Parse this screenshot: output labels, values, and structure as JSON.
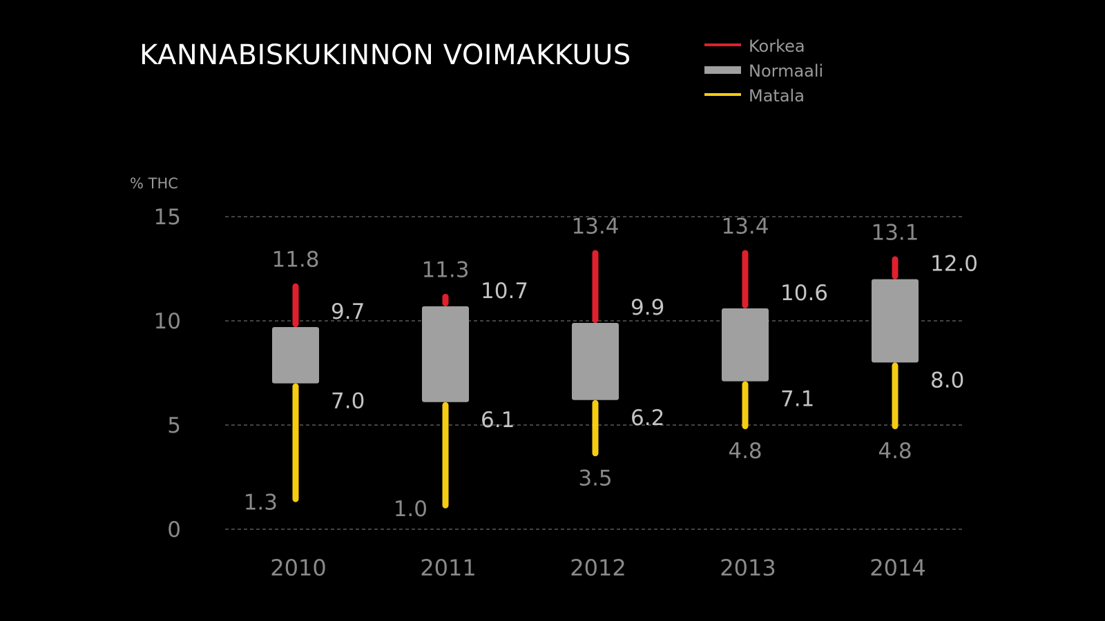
{
  "chart_data": {
    "type": "boxplot",
    "title": "KANNABISKUKINNON VOIMAKKUUS",
    "unit_label": "% THC",
    "ylim": [
      0,
      15
    ],
    "yticks": [
      "0",
      "5",
      "10",
      "15"
    ],
    "categories": [
      "2010",
      "2011",
      "2012",
      "2013",
      "2014"
    ],
    "legend": [
      {
        "label": "Korkea",
        "color": "#e0202e",
        "shape": "line"
      },
      {
        "label": "Normaali",
        "color": "#a0a0a0",
        "shape": "box"
      },
      {
        "label": "Matala",
        "color": "#f5cc12",
        "shape": "line"
      }
    ],
    "series": {
      "min": [
        1.3,
        1.0,
        3.5,
        4.8,
        4.8
      ],
      "q1": [
        7.0,
        6.1,
        6.2,
        7.1,
        8.0
      ],
      "q3": [
        9.7,
        10.7,
        9.9,
        10.6,
        12.0
      ],
      "max": [
        11.8,
        11.3,
        13.4,
        13.4,
        13.1
      ]
    },
    "value_labels": {
      "min": [
        "1.3",
        "1.0",
        "3.5",
        "4.8",
        "4.8"
      ],
      "q1": [
        "7.0",
        "6.1",
        "6.2",
        "7.1",
        "8.0"
      ],
      "q3": [
        "9.7",
        "10.7",
        "9.9",
        "10.6",
        "12.0"
      ],
      "max": [
        "11.8",
        "11.3",
        "13.4",
        "13.4",
        "13.1"
      ]
    },
    "colors": {
      "high": "#e0202e",
      "box": "#a0a0a0",
      "low": "#f5cc12",
      "grid": "#6e6e6e"
    },
    "grid": true,
    "legend_position": "top-right"
  }
}
